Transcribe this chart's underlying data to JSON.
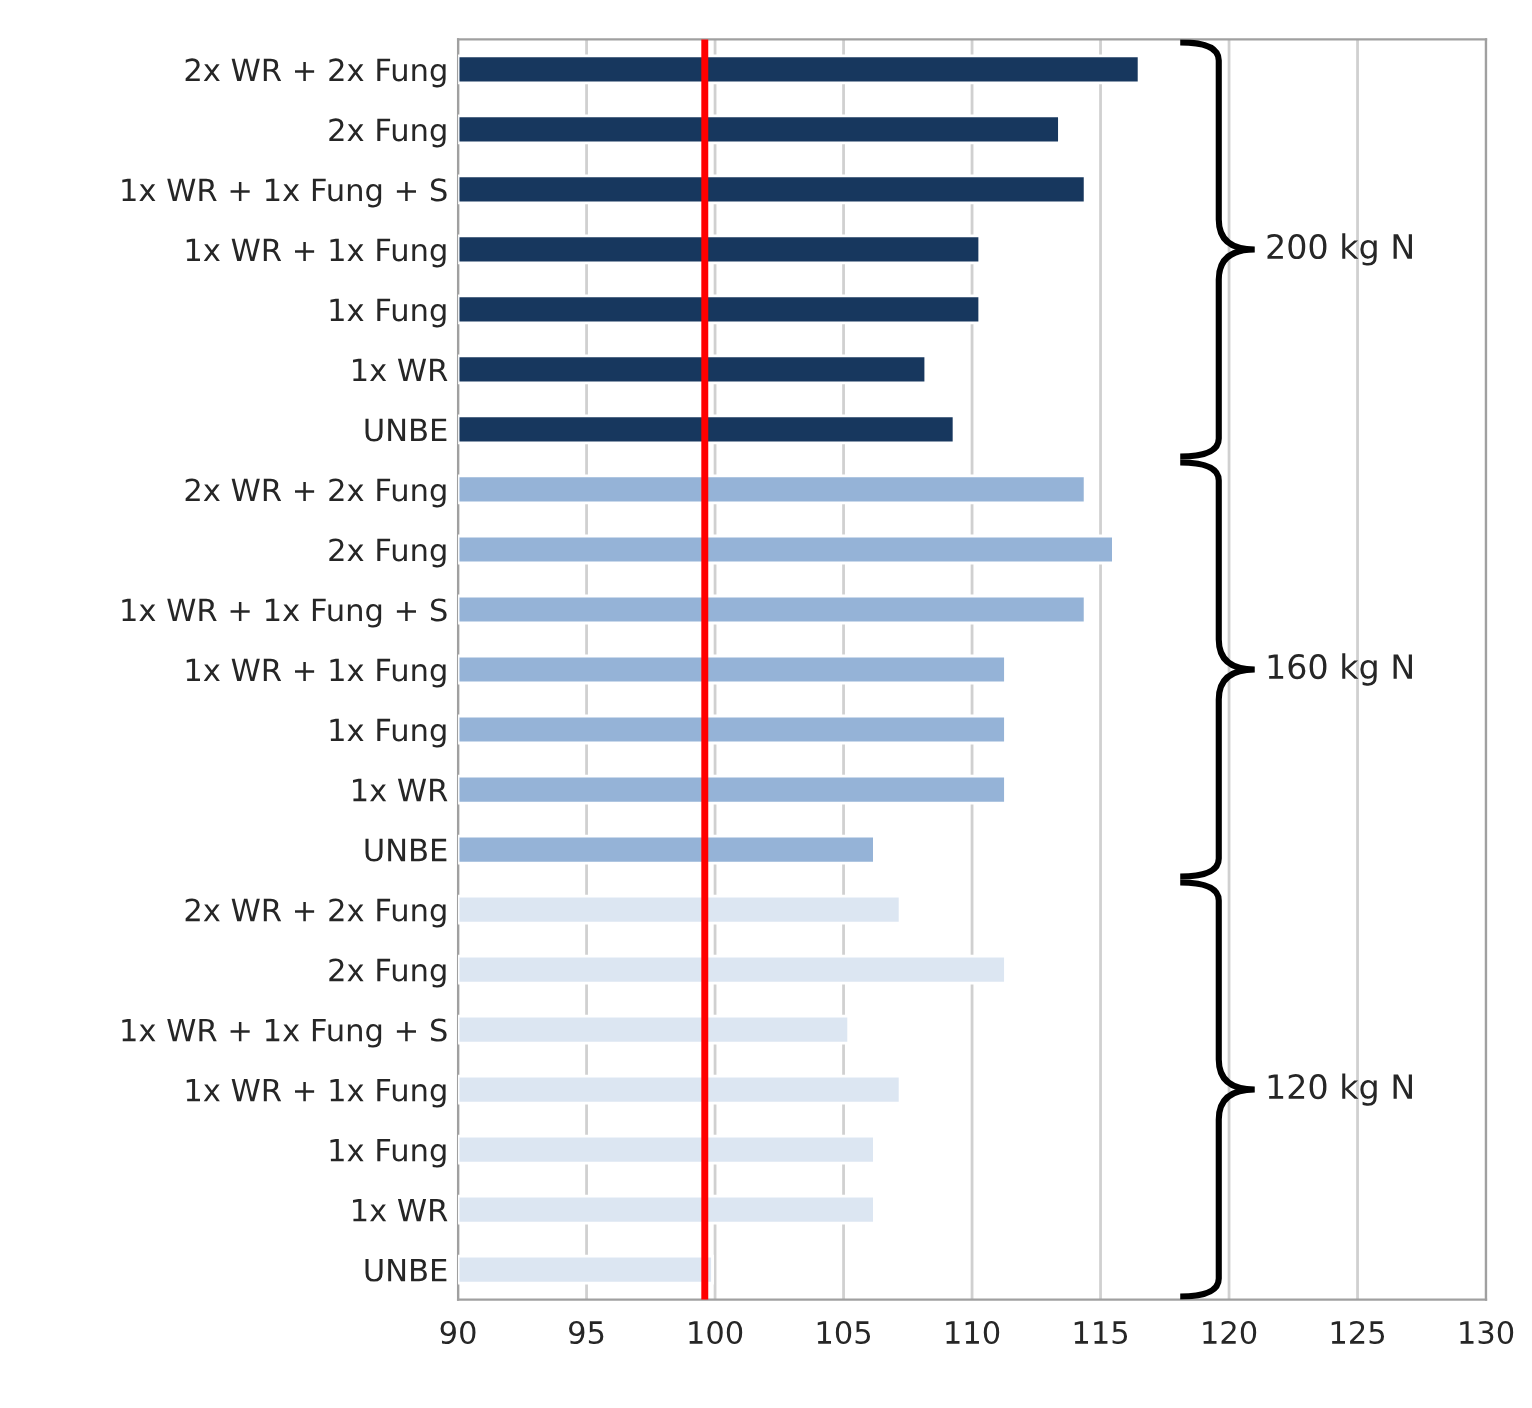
{
  "chart_data": {
    "type": "bar",
    "orientation": "horizontal",
    "categories": [
      "2x WR + 2x Fung",
      "2x Fung",
      "1x WR + 1x Fung + S",
      "1x WR + 1x Fung",
      "1x Fung",
      "1x WR",
      "UNBE",
      "2x WR + 2x Fung",
      "2x Fung",
      "1x WR + 1x Fung + S",
      "1x WR + 1x Fung",
      "1x Fung",
      "1x WR",
      "UNBE",
      "2x WR + 2x Fung",
      "2x Fung",
      "1x WR + 1x Fung + S",
      "1x WR + 1x Fung",
      "1x Fung",
      "1x WR",
      "UNBE"
    ],
    "values": [
      116.5,
      113.4,
      114.4,
      110.3,
      110.3,
      108.2,
      109.3,
      114.4,
      115.5,
      114.4,
      111.3,
      111.3,
      111.3,
      106.2,
      107.2,
      111.3,
      105.2,
      107.2,
      106.2,
      106.2,
      99.9
    ],
    "colors": [
      "#17375e",
      "#17375e",
      "#17375e",
      "#17375e",
      "#17375e",
      "#17375e",
      "#17375e",
      "#95b3d7",
      "#95b3d7",
      "#95b3d7",
      "#95b3d7",
      "#95b3d7",
      "#95b3d7",
      "#95b3d7",
      "#dce6f2",
      "#dce6f2",
      "#dce6f2",
      "#dce6f2",
      "#dce6f2",
      "#dce6f2",
      "#dce6f2"
    ],
    "xlim": [
      90,
      130
    ],
    "xticks": [
      90,
      95,
      100,
      105,
      110,
      115,
      120,
      125,
      130
    ],
    "grid": "x",
    "ref_lines": [
      {
        "axis": "x",
        "value": 99.6,
        "color": "#ff0000"
      }
    ],
    "annotations": [
      "200 kg N",
      "160 kg N",
      "120 kg N"
    ]
  }
}
